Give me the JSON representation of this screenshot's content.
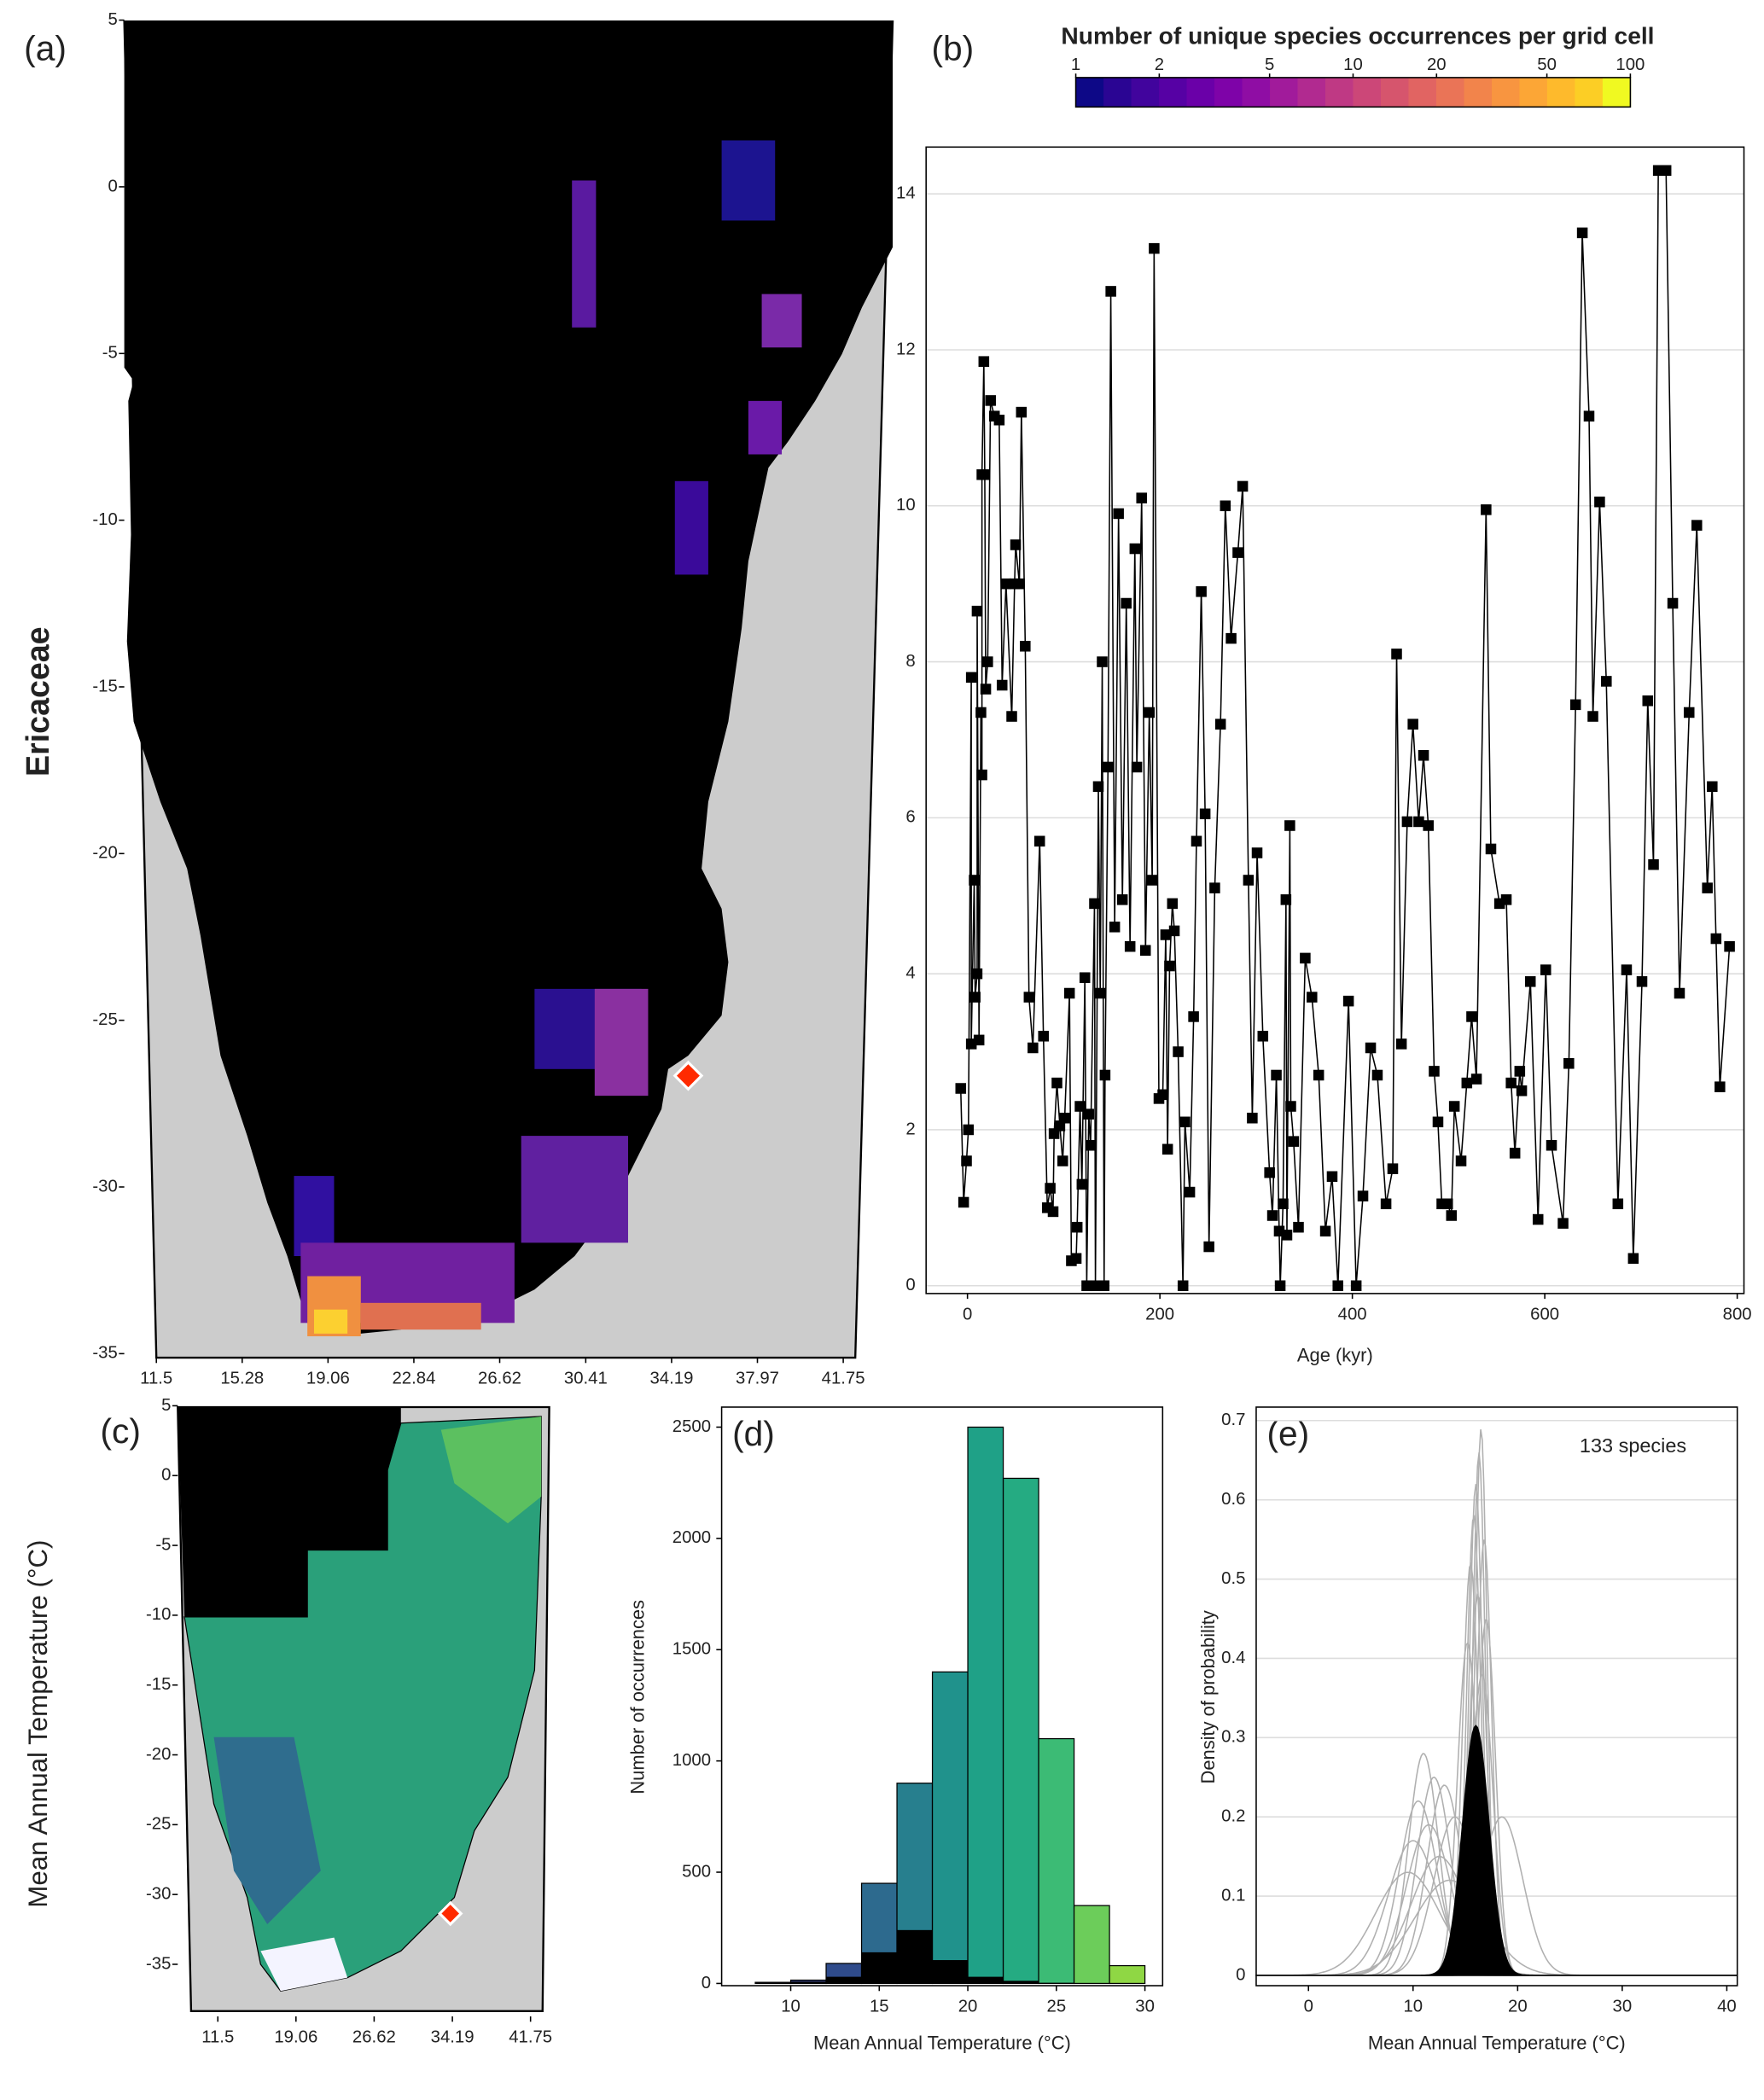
{
  "panel_labels": [
    "(a)",
    "(b)",
    "(c)",
    "(d)",
    "(e)"
  ],
  "row_labels": [
    "Ericaceae",
    "Mean Annual Temperature (°C)"
  ],
  "chart_data": [
    {
      "type": "map",
      "ylim": [
        -35,
        5
      ],
      "yticks": [
        5,
        0,
        -5,
        -10,
        -15,
        -20,
        -25,
        -30,
        -35
      ],
      "xlim": [
        11.5,
        41.75
      ],
      "xticks": [
        11.5,
        15.28,
        19.06,
        22.84,
        26.62,
        30.41,
        34.19,
        37.97,
        41.75
      ]
    },
    {
      "type": "line",
      "xlabel": "Age (kyr)",
      "color": "#000000",
      "grid": true,
      "xlim": [
        -43,
        807
      ],
      "ylim": [
        -0.1,
        14.6
      ],
      "xticks": [
        0,
        200,
        400,
        600,
        800
      ],
      "yticks": [
        0,
        2,
        4,
        6,
        8,
        10,
        12,
        14
      ],
      "colorbar": {
        "title": "Number of unique species occurrences per grid cell",
        "scale": "log",
        "lim": [
          1,
          100
        ],
        "ticks": [
          1,
          2,
          5,
          10,
          20,
          50,
          100
        ],
        "colors": [
          "#0d0887",
          "#2a0593",
          "#41049d",
          "#5601a4",
          "#6a00a8",
          "#7e03a8",
          "#8f0da4",
          "#a11b9b",
          "#b12a90",
          "#bf3984",
          "#cc4778",
          "#d6556d",
          "#e16462",
          "#ea7457",
          "#f2844b",
          "#f89540",
          "#fca636",
          "#feba2c",
          "#fcce25",
          "#f0f921"
        ]
      },
      "x": [
        -7,
        -4,
        -1,
        1,
        4,
        4,
        7,
        8,
        10,
        10,
        12,
        14,
        15,
        15,
        17,
        18,
        19,
        21,
        24,
        28,
        33,
        36,
        40,
        46,
        49,
        50,
        54,
        56,
        60,
        64,
        68,
        75,
        79,
        83,
        86,
        89,
        90,
        93,
        96,
        99,
        101,
        106,
        108,
        113,
        114,
        117,
        119,
        122,
        124,
        126,
        128,
        132,
        133,
        136,
        138,
        140,
        142,
        143,
        146,
        149,
        153,
        157,
        161,
        165,
        169,
        174,
        176,
        181,
        185,
        189,
        192,
        194,
        199,
        203,
        206,
        208,
        210,
        213,
        215,
        219,
        224,
        226,
        231,
        235,
        238,
        243,
        247,
        251,
        257,
        263,
        268,
        274,
        281,
        286,
        292,
        296,
        301,
        307,
        314,
        317,
        321,
        324,
        325,
        328,
        331,
        332,
        335,
        336,
        339,
        344,
        351,
        358,
        365,
        372,
        379,
        385,
        396,
        404,
        411,
        419,
        426,
        435,
        442,
        446,
        451,
        457,
        463,
        469,
        474,
        479,
        485,
        489,
        493,
        499,
        503,
        506,
        513,
        519,
        524,
        529,
        539,
        544,
        553,
        560,
        565,
        569,
        574,
        576,
        585,
        593,
        601,
        607,
        619,
        625,
        632,
        639,
        646,
        650,
        657,
        664,
        676,
        685,
        692,
        701,
        707,
        713,
        718,
        726,
        733,
        740,
        750,
        758,
        769,
        774,
        778,
        782,
        792
      ],
      "values": [
        2.53,
        1.07,
        1.6,
        2.0,
        7.8,
        3.1,
        5.2,
        3.7,
        4.0,
        8.65,
        3.15,
        7.35,
        6.55,
        10.4,
        11.85,
        10.4,
        7.65,
        8.0,
        11.35,
        11.15,
        11.1,
        7.7,
        9.0,
        7.3,
        9.0,
        9.5,
        9.0,
        11.2,
        8.2,
        3.7,
        3.05,
        5.7,
        3.2,
        1.0,
        1.25,
        0.95,
        1.95,
        2.6,
        2.05,
        1.6,
        2.15,
        3.75,
        0.32,
        0.35,
        0.75,
        2.3,
        1.3,
        3.95,
        0,
        2.2,
        1.8,
        4.9,
        0,
        6.4,
        3.75,
        8.0,
        0,
        2.7,
        6.65,
        12.75,
        4.6,
        9.9,
        4.95,
        8.75,
        4.35,
        9.45,
        6.65,
        10.1,
        4.3,
        7.35,
        5.2,
        13.3,
        2.4,
        2.45,
        4.5,
        1.75,
        4.1,
        4.9,
        4.55,
        3.0,
        0,
        2.1,
        1.2,
        3.45,
        5.7,
        8.9,
        6.05,
        0.5,
        5.1,
        7.2,
        10.0,
        8.3,
        9.4,
        10.25,
        5.2,
        2.15,
        5.55,
        3.2,
        1.45,
        0.9,
        2.7,
        0.7,
        0,
        1.05,
        4.95,
        0.65,
        5.9,
        2.3,
        1.85,
        0.75,
        4.2,
        3.7,
        2.7,
        0.7,
        1.4,
        0,
        3.65,
        0,
        1.15,
        3.05,
        2.7,
        1.05,
        1.5,
        8.1,
        3.1,
        5.95,
        7.2,
        5.95,
        6.8,
        5.9,
        2.75,
        2.1,
        1.05,
        1.05,
        0.9,
        2.3,
        1.6,
        2.6,
        3.45,
        2.65,
        9.95,
        5.6,
        4.9,
        4.95,
        2.6,
        1.7,
        2.75,
        2.5,
        3.9,
        0.85,
        4.05,
        1.8,
        0.8,
        2.85,
        7.45,
        13.5,
        11.15,
        7.3,
        10.05,
        7.75,
        1.05,
        4.05,
        0.35,
        3.9,
        7.5,
        5.4,
        14.3,
        14.3,
        8.75,
        3.75,
        7.35,
        9.75,
        5.1,
        6.4,
        4.45,
        2.55,
        4.35
      ]
    },
    {
      "type": "map",
      "ylim": [
        -35,
        5
      ],
      "yticks": [
        5,
        0,
        -5,
        -10,
        -15,
        -20,
        -25,
        -30,
        -35
      ],
      "xlim": [
        11.5,
        41.75
      ],
      "xticks": [
        11.5,
        19.06,
        26.62,
        34.19,
        41.75
      ]
    },
    {
      "type": "histogram",
      "xlabel": "Mean Annual Temperature (°C)",
      "ylabel": "Number of occurrences",
      "xlim": [
        6.1,
        31
      ],
      "ylim": [
        -10,
        2590
      ],
      "xticks": [
        10,
        15,
        20,
        25,
        30
      ],
      "yticks": [
        0,
        500,
        1000,
        1500,
        2000,
        2500
      ],
      "bins": [
        8,
        10,
        12,
        14,
        16,
        18,
        20,
        22,
        24,
        26,
        28,
        30
      ],
      "series": [
        {
          "values": [
            5,
            15,
            90,
            450,
            900,
            1400,
            2500,
            2270,
            1100,
            350,
            80
          ],
          "colors": [
            "#3b2a6e",
            "#38447f",
            "#2f4b8b",
            "#2d6a8e",
            "#277f8e",
            "#20928c",
            "#1fa187",
            "#25ab82",
            "#3cbb75",
            "#6ccd5a",
            "#8fd744"
          ]
        },
        {
          "values": [
            2,
            8,
            30,
            140,
            240,
            105,
            30,
            12,
            3,
            0,
            0
          ],
          "color": "#000000"
        }
      ]
    },
    {
      "type": "density",
      "xlabel": "Mean Annual Temperature (°C)",
      "ylabel": "Density of probability",
      "annotation": "133 species",
      "xlim": [
        -5,
        41
      ],
      "ylim": [
        -0.013,
        0.717
      ],
      "xticks": [
        0,
        10,
        20,
        30,
        40
      ],
      "yticks": [
        0,
        0.1,
        0.2,
        0.3,
        0.4,
        0.5,
        0.6,
        0.7
      ],
      "grid": true,
      "curve_color": "#b0b0b0",
      "mean_color": "#000000",
      "curves": [
        {
          "mean": 16.5,
          "peak": 0.69
        },
        {
          "mean": 16.3,
          "peak": 0.66
        },
        {
          "mean": 16.0,
          "peak": 0.62
        },
        {
          "mean": 15.8,
          "peak": 0.58
        },
        {
          "mean": 16.8,
          "peak": 0.55
        },
        {
          "mean": 15.5,
          "peak": 0.52
        },
        {
          "mean": 16.2,
          "peak": 0.48
        },
        {
          "mean": 17.0,
          "peak": 0.45
        },
        {
          "mean": 15.2,
          "peak": 0.42
        },
        {
          "mean": 16.6,
          "peak": 0.38
        },
        {
          "mean": 11.0,
          "peak": 0.28
        },
        {
          "mean": 12.0,
          "peak": 0.25
        },
        {
          "mean": 10.5,
          "peak": 0.22
        },
        {
          "mean": 13.0,
          "peak": 0.24
        },
        {
          "mean": 11.5,
          "peak": 0.19
        },
        {
          "mean": 10.0,
          "peak": 0.17
        },
        {
          "mean": 12.5,
          "peak": 0.15
        },
        {
          "mean": 9.5,
          "peak": 0.13
        },
        {
          "mean": 14.0,
          "peak": 0.2
        },
        {
          "mean": 18.5,
          "peak": 0.2
        },
        {
          "mean": 13.5,
          "peak": 0.12
        }
      ],
      "mean_curve": {
        "mean": 16.0,
        "peak": 0.315
      }
    }
  ]
}
